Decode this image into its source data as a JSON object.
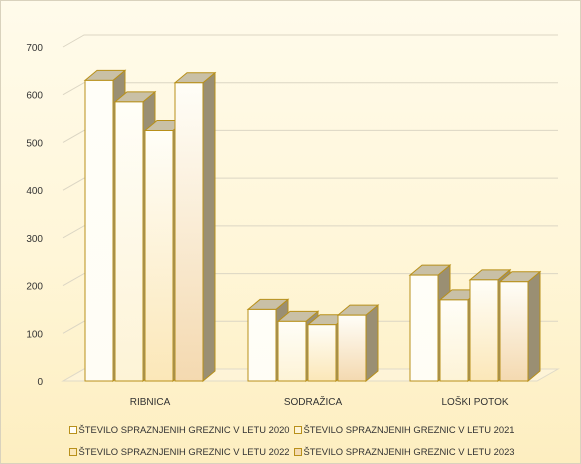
{
  "chart_data": {
    "type": "bar",
    "categories": [
      "RIBNICA",
      "SODRAŽICA",
      "LOŠKI POTOK"
    ],
    "series": [
      {
        "name": "ŠTEVILO SPRAZNJENIH GREZNIC V LETU 2020",
        "values": [
          630,
          150,
          222
        ],
        "color": "#fffdf5"
      },
      {
        "name": "ŠTEVILO SPRAZNJENIH GREZNIC V LETU 2021",
        "values": [
          585,
          125,
          170
        ],
        "color": "#fdf3d6"
      },
      {
        "name": "ŠTEVILO SPRAZNJENIH GREZNIC V LETU 2022",
        "values": [
          525,
          118,
          212
        ],
        "color": "#fbe7b8"
      },
      {
        "name": "ŠTEVILO SPRAZNJENIH GREZNIC V LETU 2023",
        "values": [
          625,
          138,
          208
        ],
        "color": "#f4d9b0"
      }
    ],
    "yticks": [
      0,
      100,
      200,
      300,
      400,
      500,
      600,
      700
    ],
    "ylim": [
      0,
      700
    ],
    "grid": true,
    "legend_position": "bottom",
    "bar_edge_color": "#b8901a",
    "depth_side_color": "#9a8f73"
  }
}
